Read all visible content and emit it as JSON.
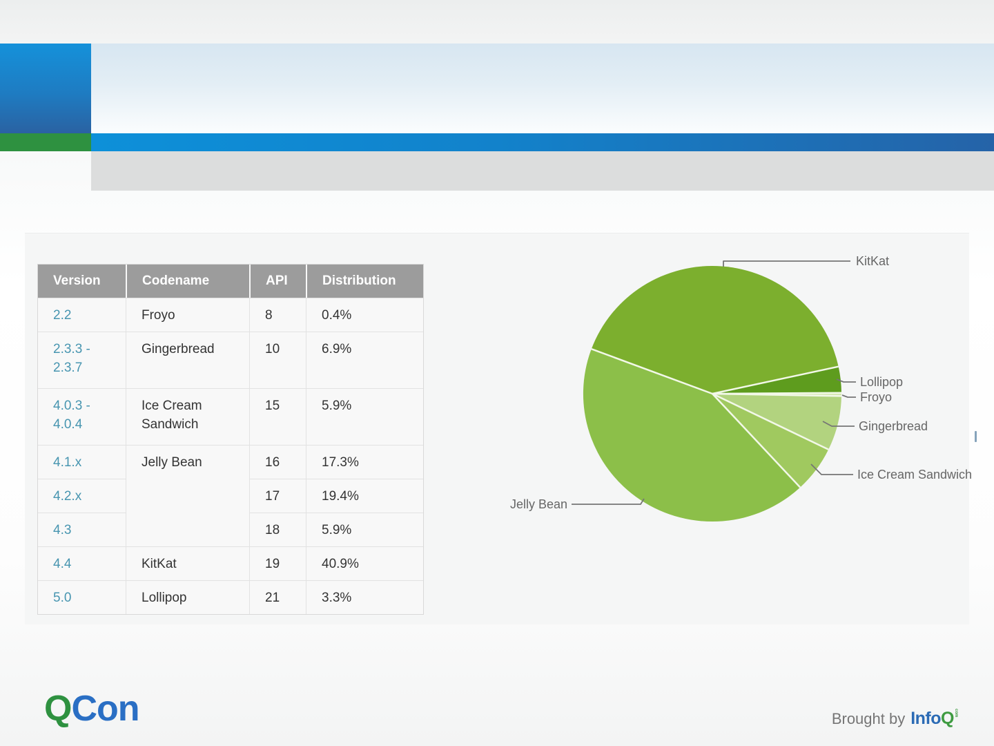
{
  "colors": {
    "qcon_green": "#2e9140",
    "qcon_blue": "#2a6fc4",
    "infoq_blue": "#2b6bb5",
    "infoq_green": "#3e9b41",
    "table_header_gray": "#9c9c9c",
    "version_link_teal": "#4795b0",
    "header_bar_blue": "#1282cb",
    "header_accent_green": "#2a9b44"
  },
  "table": {
    "headers": [
      "Version",
      "Codename",
      "API",
      "Distribution"
    ],
    "rows": [
      {
        "version": "2.2",
        "codename": "Froyo",
        "api": "8",
        "distribution": "0.4%"
      },
      {
        "version": "2.3.3 -\n2.3.7",
        "codename": "Gingerbread",
        "api": "10",
        "distribution": "6.9%"
      },
      {
        "version": "4.0.3 -\n4.0.4",
        "codename": "Ice Cream Sandwich",
        "api": "15",
        "distribution": "5.9%"
      },
      {
        "version": "4.1.x",
        "codename": "Jelly Bean",
        "api": "16",
        "distribution": "17.3%"
      },
      {
        "version": "4.2.x",
        "codename": "",
        "api": "17",
        "distribution": "19.4%"
      },
      {
        "version": "4.3",
        "codename": "",
        "api": "18",
        "distribution": "5.9%"
      },
      {
        "version": "4.4",
        "codename": "KitKat",
        "api": "19",
        "distribution": "40.9%"
      },
      {
        "version": "5.0",
        "codename": "Lollipop",
        "api": "21",
        "distribution": "3.3%"
      }
    ]
  },
  "chart_data": {
    "type": "pie",
    "title": "",
    "labels": [
      "KitKat",
      "Lollipop",
      "Froyo",
      "Gingerbread",
      "Ice Cream Sandwich",
      "Jelly Bean"
    ],
    "values": [
      40.9,
      3.3,
      0.4,
      6.9,
      5.9,
      42.6
    ],
    "unit": "%",
    "colors": [
      "#7CAF2E",
      "#5E9C1E",
      "#D5E7B2",
      "#B2D37F",
      "#A0C95F",
      "#8CBF49"
    ],
    "separator_color": "#f2f8e8",
    "label_color": "#666666",
    "leader_line_color": "#757575",
    "start_angle_deg": 159.5,
    "legend_position": "callout-labels"
  },
  "footer": {
    "qcon_q": "Q",
    "qcon_con": "Con",
    "brought_by": "Brought by",
    "infoq_info": "Info",
    "infoq_q": "Q",
    "infoq_suffix": "com"
  }
}
